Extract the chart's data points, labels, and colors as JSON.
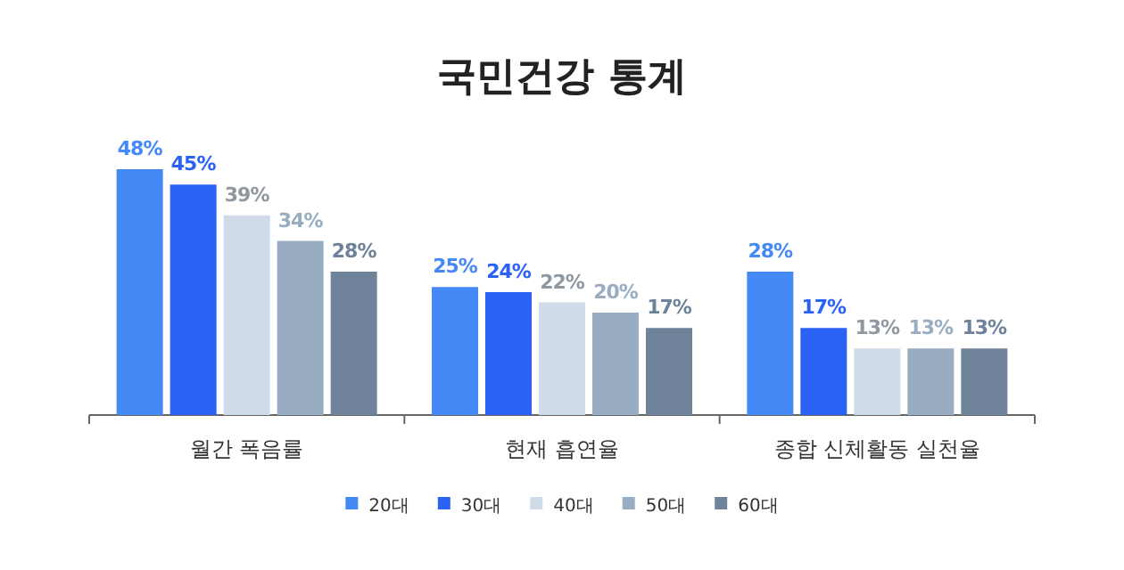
{
  "chart_data": {
    "type": "bar",
    "title": "국민건강 통계",
    "categories": [
      "월간 폭음률",
      "현재 흡연율",
      "종합 신체활동 실천율"
    ],
    "series": [
      {
        "name": "20대",
        "color": "#4589f7",
        "values": [
          48,
          25,
          28
        ],
        "value_labels": [
          "48%",
          "25%",
          "28%"
        ]
      },
      {
        "name": "30대",
        "color": "#2b62f6",
        "values": [
          45,
          24,
          17
        ],
        "value_labels": [
          "45%",
          "24%",
          "17%"
        ]
      },
      {
        "name": "40대",
        "color": "#cfdbe9",
        "values": [
          39,
          22,
          13
        ],
        "value_labels": [
          "39%",
          "22%",
          "13%"
        ]
      },
      {
        "name": "50대",
        "color": "#99adc2",
        "values": [
          34,
          20,
          13
        ],
        "value_labels": [
          "34%",
          "20%",
          "13%"
        ]
      },
      {
        "name": "60대",
        "color": "#6e8399",
        "values": [
          28,
          17,
          13
        ],
        "value_labels": [
          "28%",
          "17%",
          "13%"
        ]
      }
    ],
    "legend": "bottom"
  }
}
